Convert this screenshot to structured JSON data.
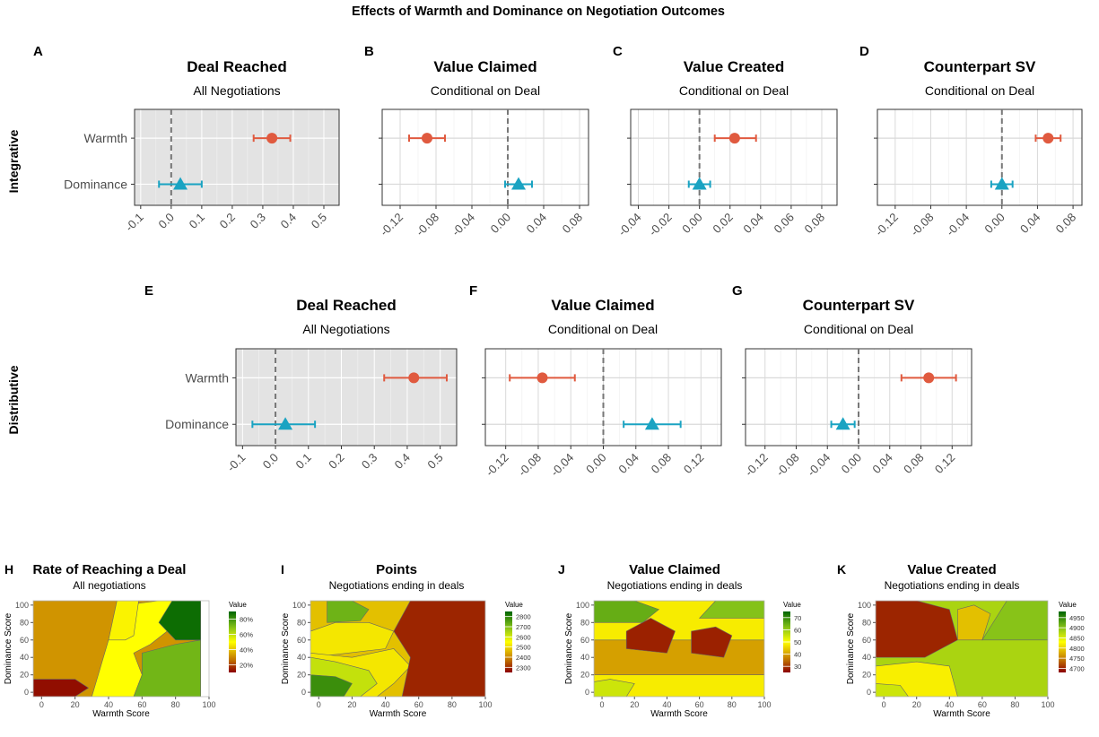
{
  "figure_title": "Effects of Warmth and Dominance on Negotiation Outcomes",
  "row_labels": [
    "Integrative",
    "Distributive"
  ],
  "colors": {
    "warmth": "#e05a3f",
    "dominance": "#1aa3c2",
    "panel_grey": "#e3e3e3",
    "grid": "#d9d9d9",
    "heat_low": "#8b0000",
    "heat_mid": "#ffff00",
    "heat_high": "#006400"
  },
  "chart_data": [
    {
      "panel": "A",
      "type": "scatter",
      "title": "Deal Reached",
      "subtitle": "All Negotiations",
      "shaded": true,
      "categories": [
        "Warmth",
        "Dominance"
      ],
      "xlim": [
        -0.12,
        0.55
      ],
      "ticks": [
        -0.1,
        0.0,
        0.1,
        0.2,
        0.3,
        0.4,
        0.5
      ],
      "tick_labels": [
        "-0.1",
        "0.0",
        "0.1",
        "0.2",
        "0.3",
        "0.4",
        "0.5"
      ],
      "series": [
        {
          "name": "Warmth",
          "estimate": 0.33,
          "lower": 0.27,
          "upper": 0.39
        },
        {
          "name": "Dominance",
          "estimate": 0.03,
          "lower": -0.04,
          "upper": 0.1
        }
      ]
    },
    {
      "panel": "B",
      "type": "scatter",
      "title": "Value Claimed",
      "subtitle": "Conditional on Deal",
      "shaded": false,
      "categories": [
        "Warmth",
        "Dominance"
      ],
      "xlim": [
        -0.14,
        0.09
      ],
      "ticks": [
        -0.12,
        -0.08,
        -0.04,
        0.0,
        0.04,
        0.08
      ],
      "tick_labels": [
        "-0.12",
        "-0.08",
        "-0.04",
        "0.00",
        "0.04",
        "0.08"
      ],
      "series": [
        {
          "name": "Warmth",
          "estimate": -0.09,
          "lower": -0.11,
          "upper": -0.07
        },
        {
          "name": "Dominance",
          "estimate": 0.012,
          "lower": -0.003,
          "upper": 0.027
        }
      ]
    },
    {
      "panel": "C",
      "type": "scatter",
      "title": "Value Created",
      "subtitle": "Conditional on Deal",
      "shaded": false,
      "categories": [
        "Warmth",
        "Dominance"
      ],
      "xlim": [
        -0.045,
        0.09
      ],
      "ticks": [
        -0.04,
        -0.02,
        0.0,
        0.02,
        0.04,
        0.06,
        0.08
      ],
      "tick_labels": [
        "-0.04",
        "-0.02",
        "0.00",
        "0.02",
        "0.04",
        "0.06",
        "0.08"
      ],
      "series": [
        {
          "name": "Warmth",
          "estimate": 0.023,
          "lower": 0.01,
          "upper": 0.037
        },
        {
          "name": "Dominance",
          "estimate": 0.0,
          "lower": -0.007,
          "upper": 0.007
        }
      ]
    },
    {
      "panel": "D",
      "type": "scatter",
      "title": "Counterpart SV",
      "subtitle": "Conditional on Deal",
      "shaded": false,
      "categories": [
        "Warmth",
        "Dominance"
      ],
      "xlim": [
        -0.14,
        0.09
      ],
      "ticks": [
        -0.12,
        -0.08,
        -0.04,
        0.0,
        0.04,
        0.08
      ],
      "tick_labels": [
        "-0.12",
        "-0.08",
        "-0.04",
        "0.00",
        "0.04",
        "0.08"
      ],
      "series": [
        {
          "name": "Warmth",
          "estimate": 0.052,
          "lower": 0.038,
          "upper": 0.066
        },
        {
          "name": "Dominance",
          "estimate": 0.0,
          "lower": -0.012,
          "upper": 0.012
        }
      ]
    },
    {
      "panel": "E",
      "type": "scatter",
      "title": "Deal Reached",
      "subtitle": "All Negotiations",
      "shaded": true,
      "categories": [
        "Warmth",
        "Dominance"
      ],
      "xlim": [
        -0.12,
        0.55
      ],
      "ticks": [
        -0.1,
        0.0,
        0.1,
        0.2,
        0.3,
        0.4,
        0.5
      ],
      "tick_labels": [
        "-0.1",
        "0.0",
        "0.1",
        "0.2",
        "0.3",
        "0.4",
        "0.5"
      ],
      "series": [
        {
          "name": "Warmth",
          "estimate": 0.42,
          "lower": 0.33,
          "upper": 0.52
        },
        {
          "name": "Dominance",
          "estimate": 0.03,
          "lower": -0.07,
          "upper": 0.12
        }
      ]
    },
    {
      "panel": "F",
      "type": "scatter",
      "title": "Value Claimed",
      "subtitle": "Conditional on Deal",
      "shaded": false,
      "categories": [
        "Warmth",
        "Dominance"
      ],
      "xlim": [
        -0.145,
        0.145
      ],
      "ticks": [
        -0.12,
        -0.08,
        -0.04,
        0.0,
        0.04,
        0.08,
        0.12
      ],
      "tick_labels": [
        "-0.12",
        "-0.08",
        "-0.04",
        "0.00",
        "0.04",
        "0.08",
        "0.12"
      ],
      "series": [
        {
          "name": "Warmth",
          "estimate": -0.075,
          "lower": -0.115,
          "upper": -0.035
        },
        {
          "name": "Dominance",
          "estimate": 0.06,
          "lower": 0.025,
          "upper": 0.095
        }
      ]
    },
    {
      "panel": "G",
      "type": "scatter",
      "title": "Counterpart SV",
      "subtitle": "Conditional on Deal",
      "shaded": false,
      "categories": [
        "Warmth",
        "Dominance"
      ],
      "xlim": [
        -0.145,
        0.145
      ],
      "ticks": [
        -0.12,
        -0.08,
        -0.04,
        0.0,
        0.04,
        0.08,
        0.12
      ],
      "tick_labels": [
        "-0.12",
        "-0.08",
        "-0.04",
        "0.00",
        "0.04",
        "0.08",
        "0.12"
      ],
      "series": [
        {
          "name": "Warmth",
          "estimate": 0.09,
          "lower": 0.055,
          "upper": 0.125
        },
        {
          "name": "Dominance",
          "estimate": -0.02,
          "lower": -0.035,
          "upper": -0.005
        }
      ]
    },
    {
      "panel": "H",
      "type": "heatmap",
      "title": "Rate of Reaching a Deal",
      "subtitle": "All negotiations",
      "xlabel": "Warmth Score",
      "ylabel": "Dominance Score",
      "xlim": [
        -5,
        100
      ],
      "ylim": [
        -5,
        105
      ],
      "xticks": [
        0,
        20,
        40,
        60,
        80,
        100
      ],
      "yticks": [
        0,
        20,
        40,
        60,
        80,
        100
      ],
      "legend_title": "Value",
      "legend_ticks": [
        "80%",
        "60%",
        "40%",
        "20%"
      ],
      "legend_range": [
        0.1,
        0.9
      ],
      "legend_tick_values": [
        0.8,
        0.6,
        0.4,
        0.2
      ],
      "regions": [
        {
          "x": [
            -5,
            95,
            95,
            -5
          ],
          "y": [
            -5,
            -5,
            105,
            105
          ],
          "level": 0.32
        },
        {
          "x": [
            30,
            42,
            55,
            60,
            55,
            65,
            75,
            85,
            95,
            95,
            70,
            50,
            40
          ],
          "y": [
            -5,
            -5,
            -5,
            20,
            45,
            55,
            70,
            80,
            90,
            105,
            105,
            100,
            60
          ],
          "level": 0.5
        },
        {
          "x": [
            40,
            50,
            55,
            58,
            45
          ],
          "y": [
            60,
            60,
            65,
            105,
            105
          ],
          "level": 0.48
        },
        {
          "x": [
            55,
            95,
            95,
            80,
            70,
            60,
            60
          ],
          "y": [
            -5,
            -5,
            60,
            55,
            50,
            45,
            20
          ],
          "level": 0.72
        },
        {
          "x": [
            80,
            95,
            95,
            78,
            70
          ],
          "y": [
            60,
            60,
            105,
            105,
            80
          ],
          "level": 0.88
        },
        {
          "x": [
            -5,
            20,
            28,
            20,
            -5
          ],
          "y": [
            -5,
            -5,
            5,
            15,
            15
          ],
          "level": 0.12
        }
      ]
    },
    {
      "panel": "I",
      "type": "heatmap",
      "title": "Points",
      "subtitle": "Negotiations ending in deals",
      "xlabel": "Warmth Score",
      "ylabel": "Dominance Score",
      "xlim": [
        -5,
        100
      ],
      "ylim": [
        -5,
        105
      ],
      "xticks": [
        0,
        20,
        40,
        60,
        80,
        100
      ],
      "yticks": [
        0,
        20,
        40,
        60,
        80,
        100
      ],
      "legend_title": "Value",
      "legend_ticks": [
        "2800",
        "2700",
        "2600",
        "2500",
        "2400",
        "2300"
      ],
      "legend_range": [
        2250,
        2850
      ],
      "legend_tick_values": [
        2800,
        2700,
        2600,
        2500,
        2400,
        2300
      ],
      "regions": [
        {
          "x": [
            -5,
            100,
            100,
            -5
          ],
          "y": [
            -5,
            -5,
            105,
            105
          ],
          "level": 2470
        },
        {
          "x": [
            -5,
            40,
            45,
            30,
            10,
            -5
          ],
          "y": [
            40,
            50,
            70,
            80,
            80,
            70
          ],
          "level": 2520
        },
        {
          "x": [
            -5,
            35,
            45,
            55,
            45,
            20,
            -5
          ],
          "y": [
            -5,
            -5,
            10,
            30,
            50,
            40,
            45
          ],
          "level": 2520
        },
        {
          "x": [
            -5,
            25,
            35,
            30,
            10,
            -5
          ],
          "y": [
            -5,
            -5,
            10,
            25,
            35,
            40
          ],
          "level": 2620
        },
        {
          "x": [
            -5,
            15,
            20,
            10,
            -5
          ],
          "y": [
            -5,
            -5,
            10,
            18,
            20
          ],
          "level": 2780
        },
        {
          "x": [
            50,
            80,
            100,
            100,
            55,
            45,
            55
          ],
          "y": [
            -5,
            -5,
            -5,
            105,
            105,
            70,
            40
          ],
          "level": 2290
        },
        {
          "x": [
            5,
            25,
            30,
            20,
            5
          ],
          "y": [
            80,
            82,
            95,
            105,
            105
          ],
          "level": 2720
        }
      ]
    },
    {
      "panel": "J",
      "type": "heatmap",
      "title": "Value Claimed",
      "subtitle": "Negotiations ending in deals",
      "xlabel": "Warmth Score",
      "ylabel": "Dominance Score",
      "xlim": [
        -5,
        100
      ],
      "ylim": [
        -5,
        105
      ],
      "xticks": [
        0,
        20,
        40,
        60,
        80,
        100
      ],
      "yticks": [
        0,
        20,
        40,
        60,
        80,
        100
      ],
      "legend_title": "Value",
      "legend_ticks": [
        "70",
        "60",
        "50",
        "40",
        "30"
      ],
      "legend_range": [
        25,
        75
      ],
      "legend_tick_values": [
        70,
        60,
        50,
        40,
        30
      ],
      "regions": [
        {
          "x": [
            -5,
            100,
            100,
            -5
          ],
          "y": [
            -5,
            -5,
            105,
            105
          ],
          "level": 48
        },
        {
          "x": [
            -5,
            100,
            100,
            -5
          ],
          "y": [
            20,
            20,
            60,
            60
          ],
          "level": 40
        },
        {
          "x": [
            15,
            40,
            45,
            30,
            15
          ],
          "y": [
            50,
            45,
            70,
            85,
            70
          ],
          "level": 28
        },
        {
          "x": [
            55,
            75,
            80,
            70,
            55
          ],
          "y": [
            45,
            40,
            65,
            75,
            70
          ],
          "level": 28
        },
        {
          "x": [
            -5,
            25,
            35,
            20,
            -5
          ],
          "y": [
            80,
            80,
            95,
            105,
            105
          ],
          "level": 65
        },
        {
          "x": [
            60,
            100,
            100,
            70
          ],
          "y": [
            85,
            85,
            105,
            105
          ],
          "level": 62
        },
        {
          "x": [
            -5,
            15,
            20,
            5,
            -5
          ],
          "y": [
            -5,
            -5,
            10,
            15,
            12
          ],
          "level": 55
        }
      ]
    },
    {
      "panel": "K",
      "type": "heatmap",
      "title": "Value Created",
      "subtitle": "Negotiations ending in deals",
      "xlabel": "Warmth Score",
      "ylabel": "Dominance Score",
      "xlim": [
        -5,
        100
      ],
      "ylim": [
        -5,
        105
      ],
      "xticks": [
        0,
        20,
        40,
        60,
        80,
        100
      ],
      "yticks": [
        0,
        20,
        40,
        60,
        80,
        100
      ],
      "legend_title": "Value",
      "legend_ticks": [
        "4950",
        "4900",
        "4850",
        "4800",
        "4750",
        "4700"
      ],
      "legend_range": [
        4680,
        4980
      ],
      "legend_tick_values": [
        4950,
        4900,
        4850,
        4800,
        4750,
        4700
      ],
      "regions": [
        {
          "x": [
            -5,
            100,
            100,
            -5
          ],
          "y": [
            -5,
            -5,
            105,
            105
          ],
          "level": 4880
        },
        {
          "x": [
            -5,
            45,
            40,
            20,
            -5
          ],
          "y": [
            -5,
            -5,
            30,
            35,
            30
          ],
          "level": 4820
        },
        {
          "x": [
            -5,
            25,
            45,
            40,
            20,
            -5
          ],
          "y": [
            40,
            40,
            60,
            95,
            105,
            105
          ],
          "level": 4700
        },
        {
          "x": [
            45,
            60,
            65,
            55,
            45
          ],
          "y": [
            60,
            60,
            90,
            100,
            95
          ],
          "level": 4790
        },
        {
          "x": [
            60,
            100,
            100,
            75
          ],
          "y": [
            60,
            60,
            105,
            105
          ],
          "level": 4900
        },
        {
          "x": [
            -5,
            15,
            10,
            -5
          ],
          "y": [
            -5,
            -5,
            8,
            10
          ],
          "level": 4860
        }
      ]
    }
  ]
}
